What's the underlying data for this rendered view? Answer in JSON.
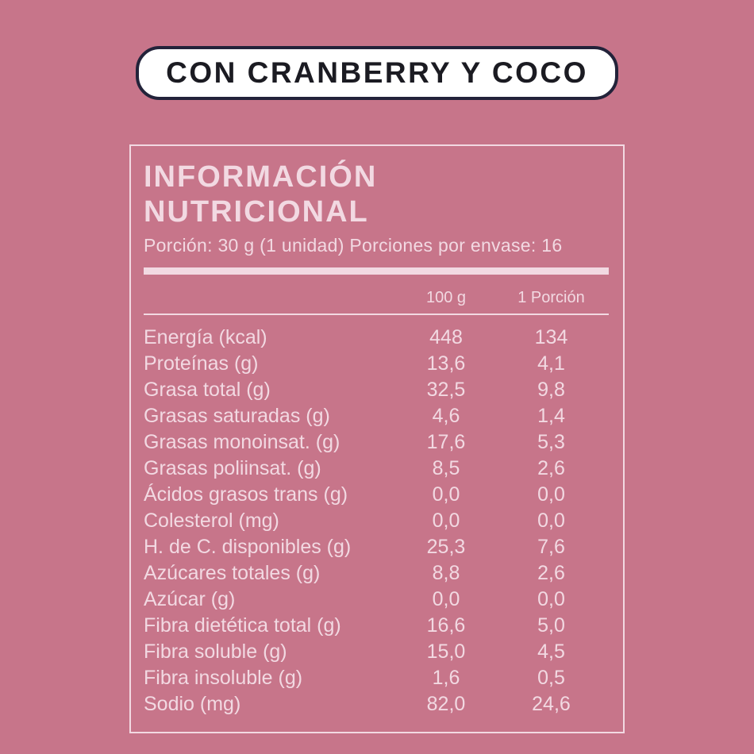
{
  "badge": {
    "label": "CON CRANBERRY Y COCO"
  },
  "panel": {
    "title": "INFORMACIÓN NUTRICIONAL",
    "serving_info": "Porción: 30 g (1 unidad) Porciones por envase: 16",
    "columns": [
      "100 g",
      "1 Porción"
    ],
    "rows": [
      {
        "label": "Energía (kcal)",
        "per100g": "448",
        "portion": "134"
      },
      {
        "label": "Proteínas (g)",
        "per100g": "13,6",
        "portion": "4,1"
      },
      {
        "label": "Grasa total (g)",
        "per100g": "32,5",
        "portion": "9,8"
      },
      {
        "label": "Grasas saturadas (g)",
        "per100g": "4,6",
        "portion": "1,4"
      },
      {
        "label": "Grasas monoinsat. (g)",
        "per100g": "17,6",
        "portion": "5,3"
      },
      {
        "label": "Grasas poliinsat. (g)",
        "per100g": "8,5",
        "portion": "2,6"
      },
      {
        "label": "Ácidos grasos trans (g)",
        "per100g": "0,0",
        "portion": "0,0"
      },
      {
        "label": "Colesterol (mg)",
        "per100g": "0,0",
        "portion": "0,0"
      },
      {
        "label": "H. de C. disponibles (g)",
        "per100g": "25,3",
        "portion": "7,6"
      },
      {
        "label": "Azúcares totales (g)",
        "per100g": "8,8",
        "portion": "2,6"
      },
      {
        "label": "Azúcar (g)",
        "per100g": "0,0",
        "portion": "0,0"
      },
      {
        "label": "Fibra dietética total (g)",
        "per100g": "16,6",
        "portion": "5,0"
      },
      {
        "label": "Fibra soluble (g)",
        "per100g": "15,0",
        "portion": "4,5"
      },
      {
        "label": "Fibra insoluble (g)",
        "per100g": "1,6",
        "portion": "0,5"
      },
      {
        "label": "Sodio (mg)",
        "per100g": "82,0",
        "portion": "24,6"
      }
    ]
  },
  "colors": {
    "background": "#c7758a",
    "text": "#f2d9e2",
    "badge_background": "#ffffff",
    "badge_border": "#23233a",
    "badge_text": "#1b1b22"
  }
}
